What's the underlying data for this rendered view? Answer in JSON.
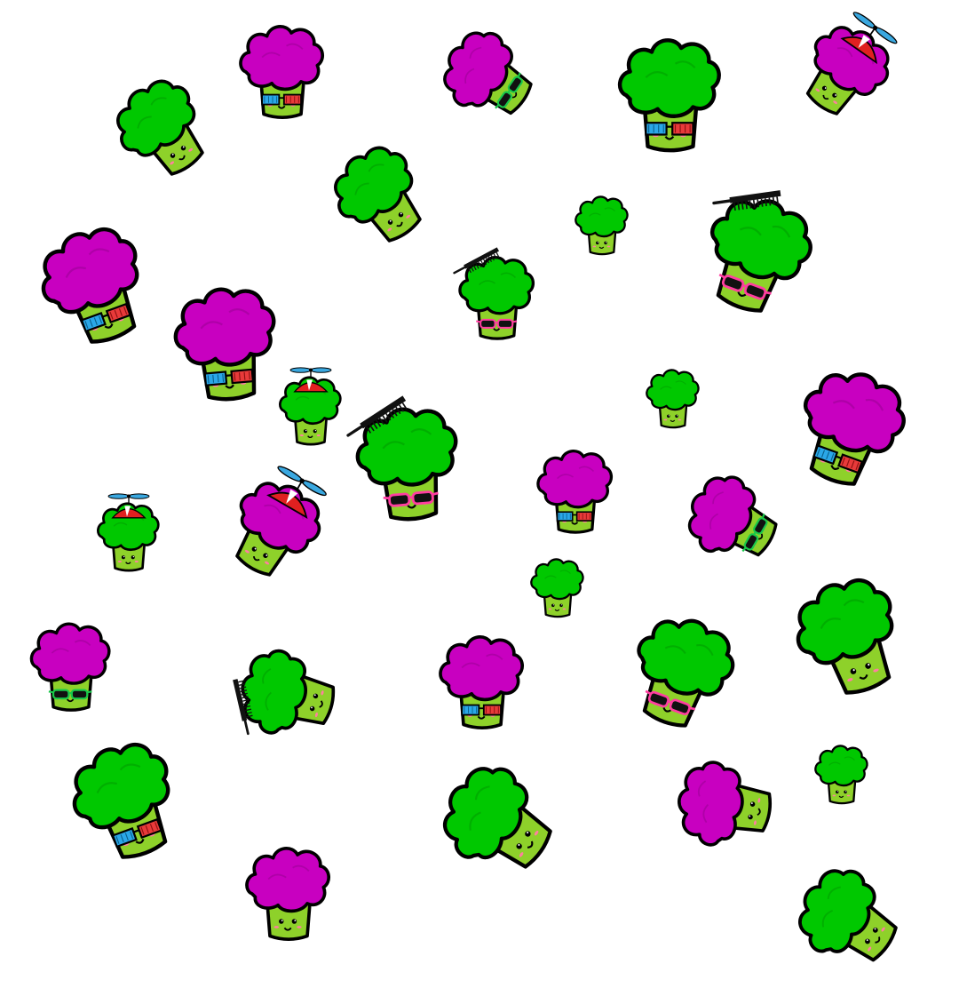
{
  "palette": {
    "background": "#ffffff",
    "floret_green": "#00c800",
    "floret_magenta": "#c800c0",
    "stem": "#8ed12a",
    "outline": "#000000",
    "cheek": "#ff7fa0",
    "lens_blue": "#2aa7e8",
    "lens_red": "#e83a3a",
    "sunglass_frame_pink": "#ff3da0",
    "sunglass_frame_green": "#18c84a",
    "cap_red": "#e02020",
    "propeller_blue": "#3aa8e0"
  },
  "sprites": [
    {
      "floret": "green",
      "accessory": "none",
      "size": "medium"
    },
    {
      "floret": "magenta",
      "accessory": "3d-glasses",
      "size": "medium"
    },
    {
      "floret": "magenta",
      "accessory": "sunglasses-green",
      "size": "medium"
    },
    {
      "floret": "green",
      "accessory": "3d-glasses",
      "size": "large"
    },
    {
      "floret": "magenta",
      "accessory": "propeller-cap",
      "size": "medium"
    },
    {
      "floret": "green",
      "accessory": "none",
      "size": "medium"
    },
    {
      "floret": "green",
      "accessory": "none",
      "size": "small"
    },
    {
      "floret": "green",
      "accessory": "comb-sunglasses-pink",
      "size": "large"
    },
    {
      "floret": "magenta",
      "accessory": "3d-glasses",
      "size": "large"
    },
    {
      "floret": "green",
      "accessory": "comb-sunglasses-pink",
      "size": "large"
    },
    {
      "floret": "magenta",
      "accessory": "3d-glasses",
      "size": "medium"
    },
    {
      "floret": "green",
      "accessory": "propeller-cap",
      "size": "small"
    },
    {
      "floret": "green",
      "accessory": "comb-sunglasses-pink",
      "size": "large"
    },
    {
      "floret": "green",
      "accessory": "none",
      "size": "small"
    },
    {
      "floret": "magenta",
      "accessory": "3d-glasses",
      "size": "large"
    },
    {
      "floret": "green",
      "accessory": "propeller-cap",
      "size": "small"
    },
    {
      "floret": "magenta",
      "accessory": "propeller-cap",
      "size": "medium"
    },
    {
      "floret": "magenta",
      "accessory": "3d-glasses",
      "size": "medium"
    },
    {
      "floret": "magenta",
      "accessory": "sunglasses-green",
      "size": "medium"
    },
    {
      "floret": "green",
      "accessory": "none",
      "size": "small"
    },
    {
      "floret": "magenta",
      "accessory": "sunglasses-green",
      "size": "medium"
    },
    {
      "floret": "green",
      "accessory": "comb",
      "size": "medium"
    },
    {
      "floret": "magenta",
      "accessory": "3d-glasses",
      "size": "medium"
    },
    {
      "floret": "green",
      "accessory": "sunglasses-pink",
      "size": "large"
    },
    {
      "floret": "green",
      "accessory": "none",
      "size": "large"
    },
    {
      "floret": "green",
      "accessory": "3d-glasses",
      "size": "large"
    },
    {
      "floret": "green",
      "accessory": "none",
      "size": "large"
    },
    {
      "floret": "magenta",
      "accessory": "none",
      "size": "medium"
    },
    {
      "floret": "green",
      "accessory": "none",
      "size": "small"
    },
    {
      "floret": "magenta",
      "accessory": "none",
      "size": "medium"
    },
    {
      "floret": "green",
      "accessory": "none",
      "size": "medium"
    }
  ]
}
